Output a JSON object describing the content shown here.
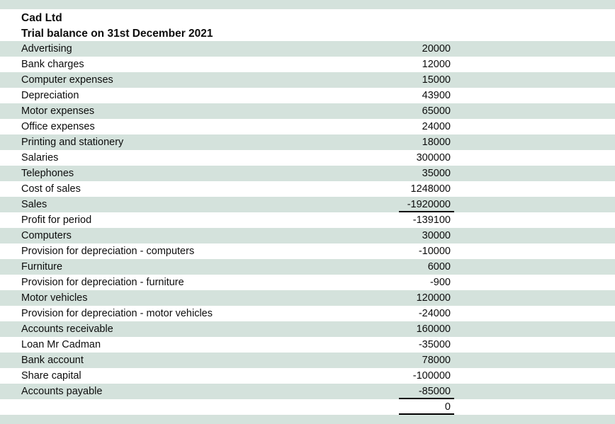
{
  "title": {
    "company": "Cad Ltd",
    "report": "Trial balance on 31st December 2021"
  },
  "colors": {
    "stripe": "#d4e2dc",
    "background": "#ffffff",
    "text": "#0d0d0d",
    "underline": "#000000"
  },
  "rows": [
    {
      "label": "Advertising",
      "value": "20000"
    },
    {
      "label": "Bank charges",
      "value": "12000"
    },
    {
      "label": "Computer expenses",
      "value": "15000"
    },
    {
      "label": "Depreciation",
      "value": "43900"
    },
    {
      "label": "Motor expenses",
      "value": "65000"
    },
    {
      "label": "Office expenses",
      "value": "24000"
    },
    {
      "label": "Printing and stationery",
      "value": "18000"
    },
    {
      "label": "Salaries",
      "value": "300000"
    },
    {
      "label": "Telephones",
      "value": "35000"
    },
    {
      "label": "Cost of sales",
      "value": "1248000"
    },
    {
      "label": "Sales",
      "value": "-1920000",
      "underline": true
    },
    {
      "label": "Profit for period",
      "value": "-139100"
    },
    {
      "label": "Computers",
      "value": "30000"
    },
    {
      "label": "Provision for depreciation - computers",
      "value": "-10000"
    },
    {
      "label": "Furniture",
      "value": "6000"
    },
    {
      "label": "Provision for depreciation - furniture",
      "value": "-900"
    },
    {
      "label": "Motor vehicles",
      "value": "120000"
    },
    {
      "label": "Provision for depreciation - motor vehicles",
      "value": "-24000"
    },
    {
      "label": "Accounts receivable",
      "value": "160000"
    },
    {
      "label": "Loan Mr Cadman",
      "value": "-35000"
    },
    {
      "label": "Bank account",
      "value": "78000"
    },
    {
      "label": "Share capital",
      "value": "-100000"
    },
    {
      "label": "Accounts payable",
      "value": "-85000",
      "underline": true
    },
    {
      "label": "",
      "value": "0",
      "underline": true
    },
    {
      "label": "",
      "value": ""
    }
  ]
}
